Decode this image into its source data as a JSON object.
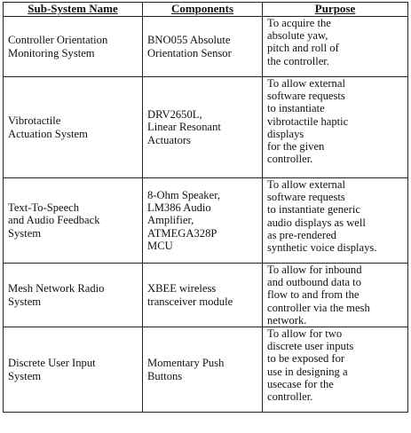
{
  "table": {
    "headers": {
      "name": "Sub-System Name",
      "components": "Components",
      "purpose": "Purpose"
    },
    "rows": [
      {
        "name": "Controller Orientation\nMonitoring System",
        "components": "BNO055 Absolute\nOrientation Sensor",
        "purpose": "To acquire the\nabsolute yaw,\npitch and roll of\nthe controller."
      },
      {
        "name": "Vibrotactile\nActuation System",
        "components": "DRV2650L,\nLinear Resonant\nActuators",
        "purpose": "To allow external\nsoftware requests\nto instantiate\nvibrotactile haptic\ndisplays\nfor the given\ncontroller."
      },
      {
        "name": "Text-To-Speech\nand Audio Feedback\nSystem",
        "components": "8-Ohm Speaker,\nLM386 Audio\nAmplifier,\nATMEGA328P\nMCU",
        "purpose": "To allow external\nsoftware requests\nto instantiate generic\naudio displays as well\nas pre-rendered\nsynthetic voice displays."
      },
      {
        "name": "Mesh Network Radio\nSystem",
        "components": "XBEE wireless\ntransceiver module",
        "purpose": "To allow for inbound\nand outbound data to\nflow to and from the\ncontroller via the mesh\nnetwork."
      },
      {
        "name": "Discrete User Input\nSystem",
        "components": "Momentary Push\nButtons",
        "purpose": "To allow for two\ndiscrete user inputs\nto be exposed for\nuse in designing a\nusecase for the\ncontroller."
      }
    ]
  }
}
